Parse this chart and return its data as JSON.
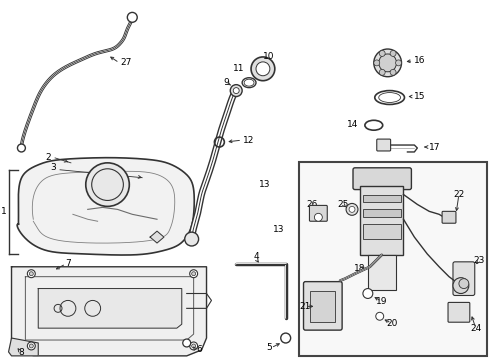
{
  "bg_color": "#ffffff",
  "line_color": "#333333",
  "text_color": "#000000",
  "fig_width": 4.9,
  "fig_height": 3.6,
  "dpi": 100,
  "fs_label": 6.5,
  "fs_small": 5.5
}
